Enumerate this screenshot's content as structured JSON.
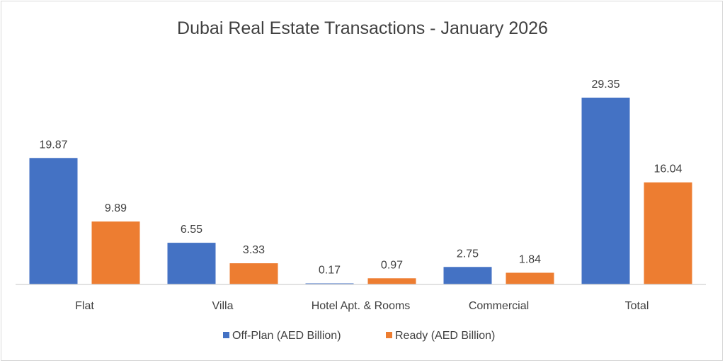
{
  "chart_data": {
    "type": "bar",
    "title": "Dubai Real Estate Transactions - January 2026",
    "xlabel": "",
    "ylabel": "",
    "categories": [
      "Flat",
      "Villa",
      "Hotel Apt. & Rooms",
      "Commercial",
      "Total"
    ],
    "series": [
      {
        "name": "Off-Plan (AED Billion)",
        "values": [
          19.87,
          6.55,
          0.17,
          2.75,
          29.35
        ],
        "labels": [
          "19.87",
          "6.55",
          "0.17",
          "2.75",
          "29.35"
        ],
        "color": "#4472c4"
      },
      {
        "name": "Ready (AED Billion)",
        "values": [
          9.89,
          3.33,
          0.97,
          1.84,
          16.04
        ],
        "labels": [
          "9.89",
          "3.33",
          "0.97",
          "1.84",
          "16.04"
        ],
        "color": "#ed7d31"
      }
    ],
    "ylim": [
      0,
      30
    ],
    "y_axis_visible": false,
    "grid": false,
    "data_labels": true,
    "legend_position": "bottom",
    "axis_color": "#d9d9d9",
    "text_color": "#404040"
  }
}
